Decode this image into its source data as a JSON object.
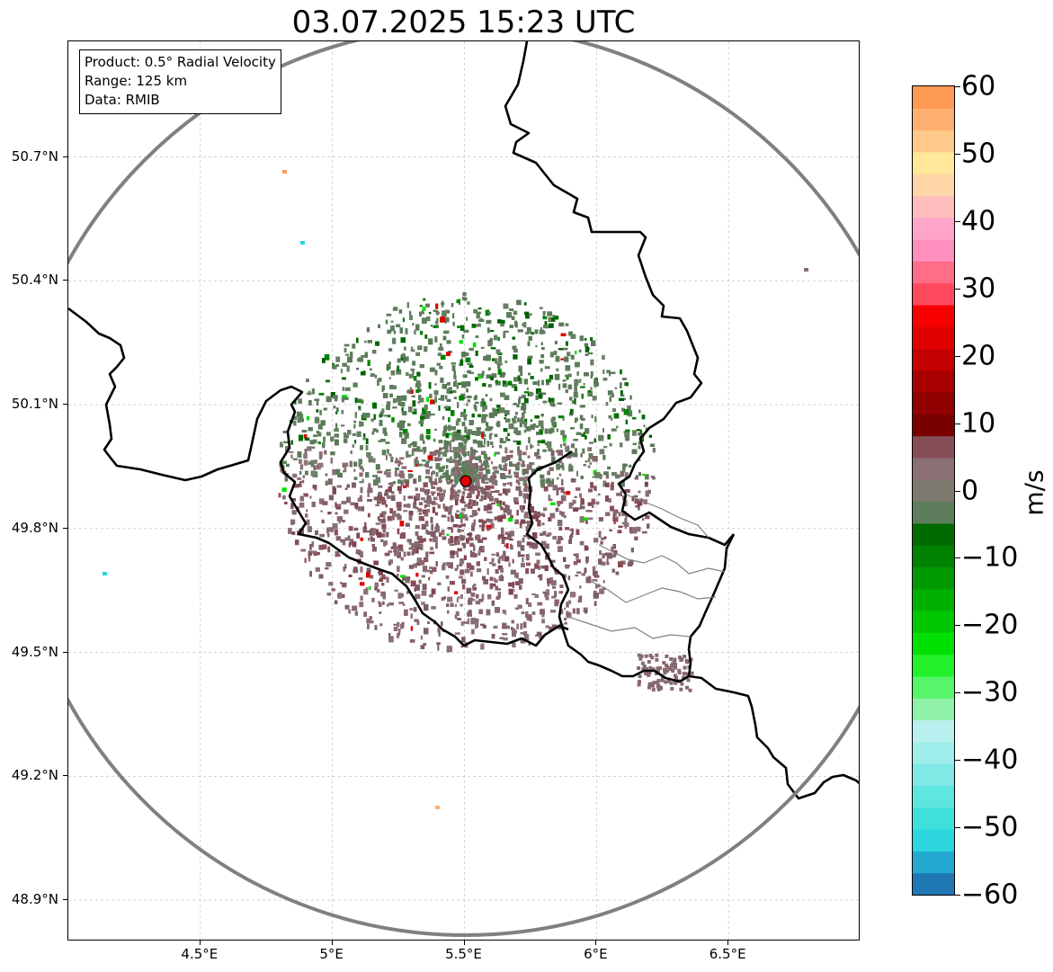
{
  "title": "03.07.2025 15:23 UTC",
  "info": {
    "product": "Product: 0.5° Radial Velocity",
    "range": "Range: 125 km",
    "data": "Data: RMIB"
  },
  "axes": {
    "x_ticks": [
      "4.5°E",
      "5°E",
      "5.5°E",
      "6°E",
      "6.5°E"
    ],
    "x_values": [
      4.5,
      5.0,
      5.5,
      6.0,
      6.5
    ],
    "y_ticks": [
      "50.7°N",
      "50.4°N",
      "50.1°N",
      "49.8°N",
      "49.5°N",
      "49.2°N",
      "48.9°N"
    ],
    "y_values": [
      50.7,
      50.4,
      50.1,
      49.8,
      49.5,
      49.2,
      48.9
    ],
    "lon_range": [
      4.0,
      7.0
    ],
    "lat_range": [
      48.8,
      50.98
    ],
    "grid": "dashed"
  },
  "radar": {
    "site_lon": 5.505,
    "site_lat": 49.915,
    "site_color": "#e00000",
    "range_ring_color": "#808080"
  },
  "colorbar": {
    "unit": "m/s",
    "min": -60,
    "max": 60,
    "ticks": [
      "60",
      "50",
      "40",
      "30",
      "20",
      "10",
      "0",
      "−10",
      "−20",
      "−30",
      "−40",
      "−50",
      "−60"
    ],
    "tick_values": [
      60,
      50,
      40,
      30,
      20,
      10,
      0,
      -10,
      -20,
      -30,
      -40,
      -50,
      -60
    ],
    "colors": [
      "#1f77b4",
      "#23a8cf",
      "#2bd6dc",
      "#3fe0dc",
      "#5ee6e0",
      "#7fe9e6",
      "#9eedea",
      "#b7f0ee",
      "#8ff2a8",
      "#56f56a",
      "#22f028",
      "#00e000",
      "#00c800",
      "#00b000",
      "#009800",
      "#008200",
      "#006a00",
      "#5d7d5c",
      "#7d7a6f",
      "#8a6f75",
      "#874e57",
      "#7a0000",
      "#900000",
      "#a80000",
      "#c40000",
      "#e00000",
      "#f80000",
      "#ff4a5e",
      "#ff6d86",
      "#ff8fbd",
      "#ffa6c8",
      "#ffbcbc",
      "#ffd7a6",
      "#ffe89a",
      "#ffc98a",
      "#ffb070",
      "#ff9a55"
    ]
  }
}
